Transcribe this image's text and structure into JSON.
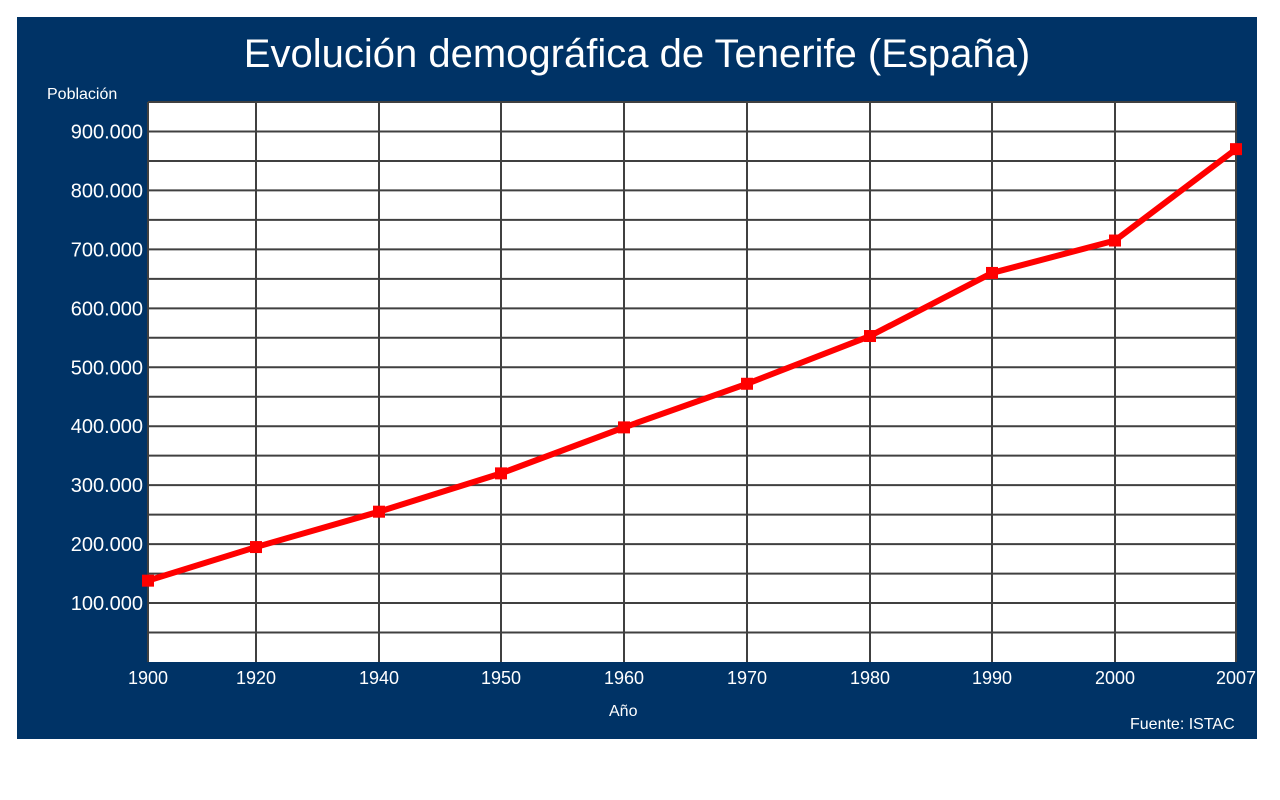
{
  "chart_data": {
    "type": "line",
    "title": "Evolución demográfica de Tenerife (España)",
    "ylabel": "Población",
    "xlabel": "Año",
    "source": "Fuente: ISTAC",
    "x": [
      "1900",
      "1920",
      "1940",
      "1950",
      "1960",
      "1970",
      "1980",
      "1990",
      "2000",
      "2007"
    ],
    "x_axis_scale": "categorical (unequal year spacing drawn at fixed positions)",
    "y_tick_labels": [
      "100.000",
      "200.000",
      "300.000",
      "400.000",
      "500.000",
      "600.000",
      "700.000",
      "800.000",
      "900.000"
    ],
    "ylim": [
      0,
      950000
    ],
    "grid": true,
    "series": [
      {
        "values": [
          138000,
          195000,
          255000,
          320000,
          398000,
          472000,
          553000,
          660000,
          715000,
          870000
        ]
      }
    ],
    "colors": {
      "background": "#003366",
      "plot": "#ffffff",
      "line": "#ff0000",
      "grid": "#404040",
      "text": "#ffffff"
    }
  }
}
